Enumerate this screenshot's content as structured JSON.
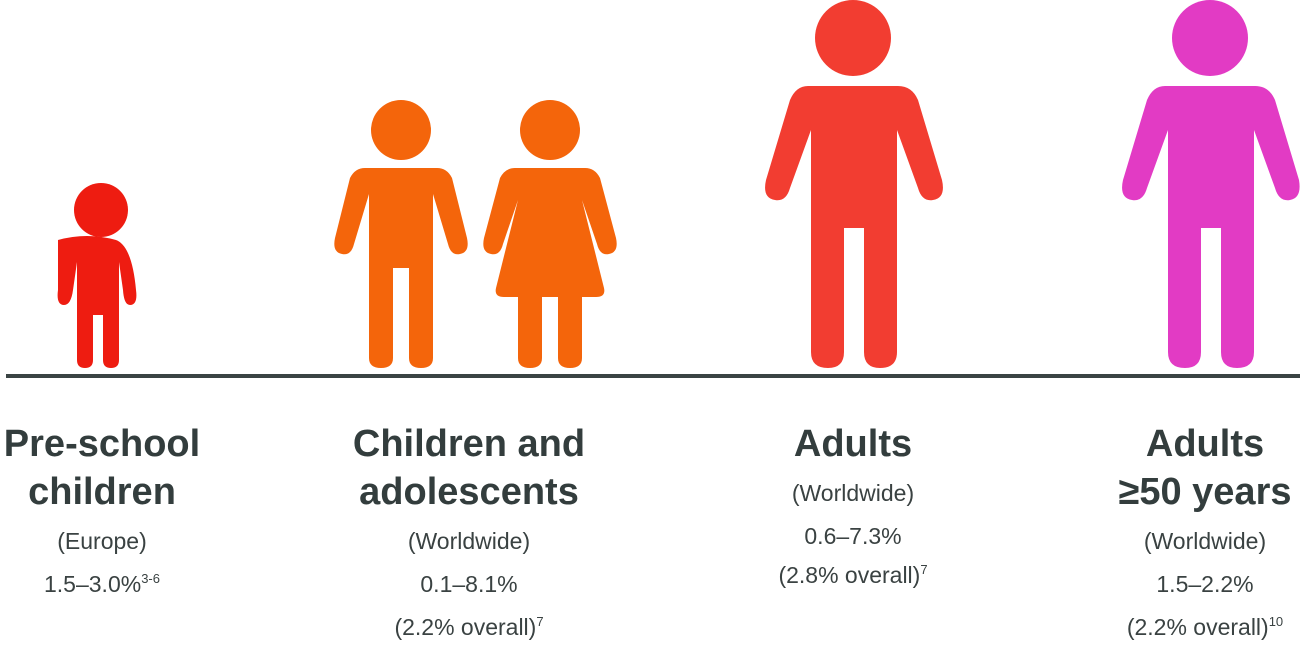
{
  "colors": {
    "preschool": "#ee1c11",
    "children": "#f4650b",
    "adults": "#f23d31",
    "adults50": "#e23bc4",
    "baseline": "#3a4444",
    "text": "#333d3d"
  },
  "groups": [
    {
      "icon": "toddler-icon",
      "title_line1": "Pre-school",
      "title_line2": "children",
      "region": "(Europe)",
      "range": "1.5–3.0%",
      "range_ref": "3-6",
      "overall": "",
      "overall_ref": ""
    },
    {
      "icon": "boy-and-girl-icon",
      "title_line1": "Children and",
      "title_line2": "adolescents",
      "region": "(Worldwide)",
      "range": "0.1–8.1%",
      "range_ref": "",
      "overall": "(2.2% overall)",
      "overall_ref": "7"
    },
    {
      "icon": "adult-icon",
      "title_line1": "Adults",
      "title_line2": "",
      "region": "(Worldwide)",
      "range": "0.6–7.3%",
      "range_ref": "",
      "overall": "(2.8% overall)",
      "overall_ref": "7"
    },
    {
      "icon": "older-adult-icon",
      "title_line1": "Adults",
      "title_line2": "≥50 years",
      "region": "(Worldwide)",
      "range": "1.5–2.2%",
      "range_ref": "",
      "overall": "(2.2% overall)",
      "overall_ref": "10"
    }
  ]
}
